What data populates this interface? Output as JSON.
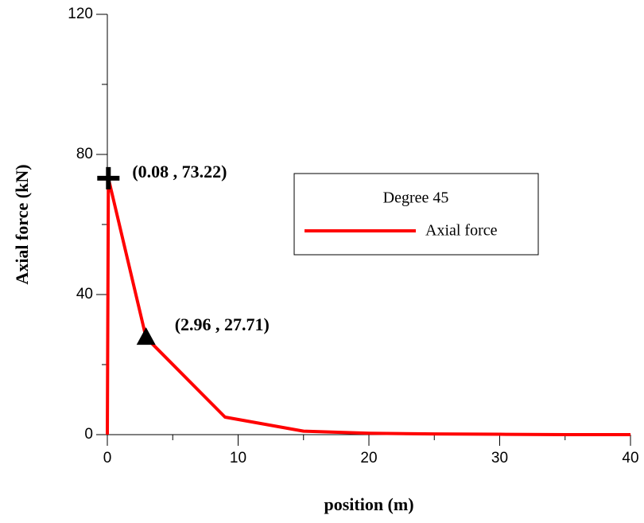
{
  "chart_data": {
    "type": "line",
    "x_label": "position (m)",
    "y_label": "Axial force (kN)",
    "xlim": [
      0,
      40
    ],
    "ylim": [
      0,
      120
    ],
    "xticks": [
      0,
      10,
      20,
      30,
      40
    ],
    "yticks": [
      0,
      40,
      80,
      120
    ],
    "xminor": [
      5,
      15,
      25,
      35
    ],
    "yminor": [
      20,
      60,
      100
    ],
    "legend_title": "Degree 45",
    "series": [
      {
        "name": "Axial force",
        "color": "#ff0000",
        "x": [
          0,
          0.08,
          2.96,
          9,
          15,
          20,
          25,
          30,
          35,
          40
        ],
        "values": [
          0,
          73.22,
          27.71,
          5,
          1,
          0.4,
          0.2,
          0.1,
          0,
          0
        ]
      }
    ],
    "annotations": [
      {
        "text": "(0.08 , 73.22)",
        "x": 0.08,
        "y": 73.22,
        "marker": "plus"
      },
      {
        "text": "(2.96 , 27.71)",
        "x": 2.96,
        "y": 27.71,
        "marker": "triangle"
      }
    ]
  }
}
